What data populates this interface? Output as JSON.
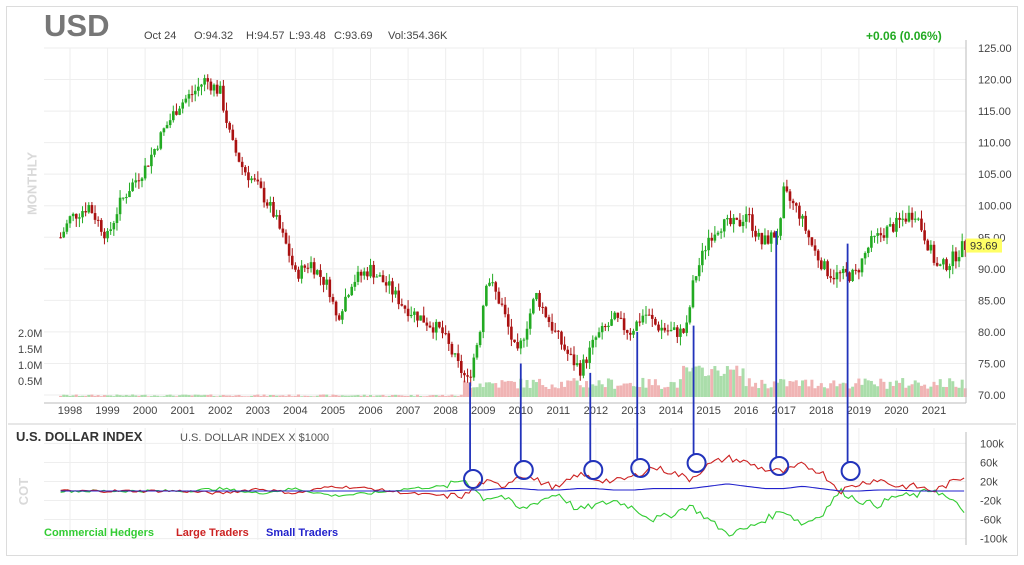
{
  "header": {
    "symbol": "USD",
    "date": "Oct 24",
    "open": "O:94.32",
    "high": "H:94.57",
    "low": "L:93.48",
    "close": "C:93.69",
    "volume": "Vol:354.36K",
    "change": "+0.06 (0.06%)",
    "period_label": "MONTHLY",
    "last_price_badge": "93.69"
  },
  "colors": {
    "up": "#22aa22",
    "down": "#aa1111",
    "commercial": "#33cc33",
    "large": "#cc2222",
    "small": "#2222cc",
    "annotation": "#2233bb",
    "badge": "#ffff66"
  },
  "indicator": {
    "title": "U.S. DOLLAR INDEX",
    "subtitle": "U.S. DOLLAR INDEX X $1000",
    "side_label": "COT",
    "legend": [
      {
        "name": "Commercial Hedgers",
        "color": "#33cc33"
      },
      {
        "name": "Large Traders",
        "color": "#cc2222"
      },
      {
        "name": "Small Traders",
        "color": "#2222cc"
      }
    ]
  },
  "chart_data": [
    {
      "type": "candlestick",
      "x_ticks": [
        "1998",
        "1999",
        "2000",
        "2001",
        "2002",
        "2003",
        "2004",
        "2005",
        "2006",
        "2007",
        "2008",
        "2009",
        "2010",
        "2011",
        "2012",
        "2013",
        "2014",
        "2015",
        "2016",
        "2017",
        "2018",
        "2019",
        "2020",
        "2021"
      ],
      "y_ticks": [
        "125.00",
        "120.00",
        "115.00",
        "110.00",
        "105.00",
        "100.00",
        "95.00",
        "90.00",
        "85.00",
        "80.00",
        "75.00",
        "70.00"
      ],
      "ylim": [
        70,
        125
      ],
      "volume_ticks": [
        "2.0M",
        "1.5M",
        "1.0M",
        "0.5M"
      ],
      "volume_ylim": [
        0,
        2.0
      ],
      "price_series": {
        "x": [
          1997.75,
          1998.0,
          1998.5,
          1999.0,
          1999.3,
          1999.6,
          2000.0,
          2000.5,
          2000.9,
          2001.3,
          2001.6,
          2002.0,
          2002.3,
          2002.6,
          2003.0,
          2003.4,
          2003.8,
          2004.0,
          2004.4,
          2004.9,
          2005.1,
          2005.5,
          2006.0,
          2006.5,
          2006.9,
          2007.4,
          2007.9,
          2008.3,
          2008.6,
          2008.9,
          2009.1,
          2009.5,
          2009.9,
          2010.4,
          2010.9,
          2011.3,
          2011.6,
          2012.0,
          2012.5,
          2012.9,
          2013.3,
          2013.6,
          2014.0,
          2014.4,
          2014.6,
          2015.0,
          2015.3,
          2015.8,
          2016.0,
          2016.4,
          2016.9,
          2017.0,
          2017.4,
          2017.8,
          2018.1,
          2018.3,
          2018.9,
          2019.3,
          2019.7,
          2020.0,
          2020.2,
          2020.5,
          2020.9,
          2021.1,
          2021.4,
          2021.8
        ],
        "close": [
          95,
          98,
          100,
          95,
          100,
          103,
          106,
          112,
          116,
          118,
          120,
          118,
          110,
          106,
          103,
          99,
          93,
          89,
          91,
          87,
          82,
          88,
          90,
          87,
          84,
          82,
          80,
          75,
          72,
          80,
          89,
          84,
          76,
          86,
          80,
          76,
          74,
          79,
          82,
          80,
          83,
          81,
          80,
          80,
          88,
          95,
          97,
          97,
          99,
          94,
          96,
          102,
          99,
          93,
          90,
          89,
          89,
          94,
          96,
          97,
          98,
          99,
          93,
          90,
          91,
          93.69
        ]
      },
      "volume_unit": "M"
    },
    {
      "type": "line",
      "title": "U.S. DOLLAR INDEX",
      "ylabel": "COT",
      "y_ticks": [
        "100k",
        "60k",
        "20k",
        "-20k",
        "-60k",
        "-100k"
      ],
      "ylim": [
        -100,
        100
      ],
      "x": [
        1997.75,
        1999,
        2000,
        2001,
        2002,
        2003,
        2004,
        2005,
        2006,
        2007,
        2008,
        2008.5,
        2009,
        2009.5,
        2010,
        2010.5,
        2011,
        2011.5,
        2012,
        2012.5,
        2013,
        2013.5,
        2014,
        2014.5,
        2015,
        2015.5,
        2016,
        2016.5,
        2017,
        2017.5,
        2018,
        2018.5,
        2019,
        2019.5,
        2020,
        2020.5,
        2021,
        2021.8
      ],
      "series": [
        {
          "name": "Commercial Hedgers",
          "values": [
            0,
            0,
            0,
            0,
            5,
            -5,
            5,
            -10,
            -5,
            5,
            10,
            25,
            -15,
            -10,
            -40,
            -20,
            -5,
            -40,
            -30,
            -20,
            -35,
            -60,
            -50,
            -30,
            -60,
            -90,
            -80,
            -60,
            -40,
            -70,
            -50,
            0,
            -20,
            -30,
            -10,
            -10,
            5,
            -40
          ]
        },
        {
          "name": "Large Traders",
          "values": [
            0,
            0,
            0,
            0,
            -5,
            5,
            -5,
            10,
            5,
            -5,
            -10,
            -10,
            20,
            10,
            35,
            20,
            5,
            35,
            25,
            20,
            30,
            50,
            40,
            25,
            55,
            70,
            60,
            45,
            40,
            55,
            40,
            0,
            15,
            25,
            10,
            10,
            0,
            30
          ]
        },
        {
          "name": "Small Traders",
          "values": [
            0,
            0,
            0,
            0,
            0,
            0,
            0,
            0,
            0,
            0,
            0,
            2,
            2,
            5,
            5,
            2,
            2,
            5,
            5,
            2,
            2,
            5,
            5,
            5,
            10,
            15,
            10,
            5,
            5,
            10,
            5,
            0,
            0,
            2,
            2,
            0,
            0,
            0
          ]
        }
      ]
    }
  ]
}
